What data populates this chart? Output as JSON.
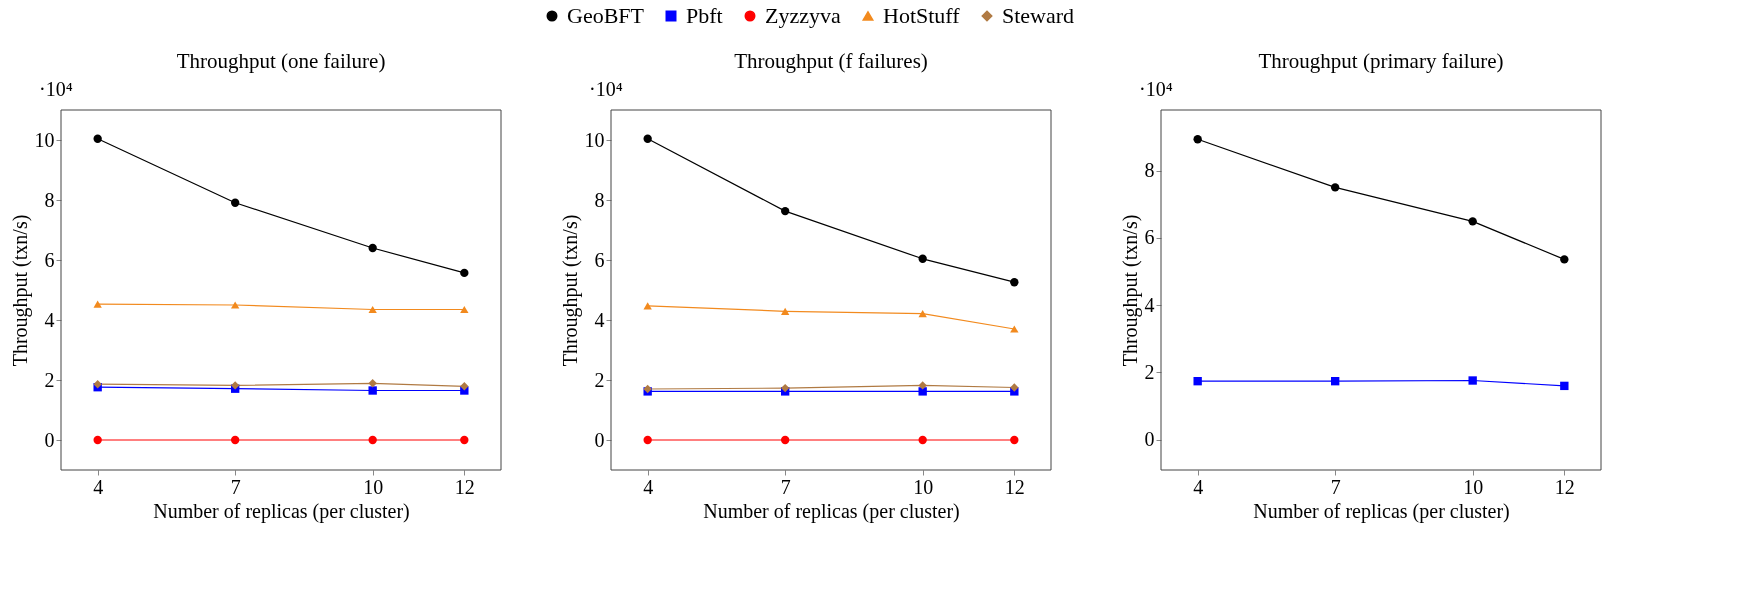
{
  "chart_data": [
    {
      "type": "line",
      "title": "Throughput (one failure)",
      "xlabel": "Number of replicas (per cluster)",
      "ylabel": "Throughput (txn/s)",
      "x": [
        4,
        7,
        10,
        12
      ],
      "xlim": [
        3.2,
        12.8
      ],
      "xticks": [
        4,
        7,
        10,
        12
      ],
      "ylim": [
        -1,
        11
      ],
      "yticks": [
        0,
        2,
        4,
        6,
        8,
        10
      ],
      "grid": false,
      "legend": "top",
      "annotations": [
        "·10⁴"
      ],
      "series": [
        {
          "name": "GeoBFT",
          "color": "#000000",
          "marker": "circle",
          "values": [
            10.04,
            7.91,
            6.4,
            5.57
          ]
        },
        {
          "name": "Pbft",
          "color": "#0000ff",
          "marker": "square",
          "values": [
            1.76,
            1.71,
            1.65,
            1.65
          ]
        },
        {
          "name": "Zyzzyva",
          "color": "#ff0000",
          "marker": "circle",
          "values": [
            0,
            0,
            0,
            0
          ]
        },
        {
          "name": "HotStuff",
          "color": "#f28a1e",
          "marker": "triangle",
          "values": [
            4.53,
            4.5,
            4.35,
            4.35
          ]
        },
        {
          "name": "Steward",
          "color": "#b07a43",
          "marker": "diamond",
          "values": [
            1.86,
            1.82,
            1.89,
            1.79
          ]
        }
      ]
    },
    {
      "type": "line",
      "title": "Throughput (f failures)",
      "xlabel": "Number of replicas (per cluster)",
      "ylabel": "Throughput (txn/s)",
      "x": [
        4,
        7,
        10,
        12
      ],
      "xlim": [
        3.2,
        12.8
      ],
      "xticks": [
        4,
        7,
        10,
        12
      ],
      "ylim": [
        -1,
        11
      ],
      "yticks": [
        0,
        2,
        4,
        6,
        8,
        10
      ],
      "grid": false,
      "annotations": [
        "·10⁴"
      ],
      "series": [
        {
          "color": "#000000",
          "marker": "circle",
          "values": [
            10.04,
            7.63,
            6.04,
            5.26
          ]
        },
        {
          "color": "#0000ff",
          "marker": "square",
          "values": [
            1.62,
            1.62,
            1.62,
            1.62
          ]
        },
        {
          "color": "#ff0000",
          "marker": "circle",
          "values": [
            0,
            0,
            0,
            0
          ]
        },
        {
          "color": "#f28a1e",
          "marker": "triangle",
          "values": [
            4.47,
            4.29,
            4.21,
            3.7
          ]
        },
        {
          "color": "#b07a43",
          "marker": "diamond",
          "values": [
            1.7,
            1.73,
            1.82,
            1.75
          ]
        }
      ]
    },
    {
      "type": "line",
      "title": "Throughput (primary failure)",
      "xlabel": "Number of replicas (per cluster)",
      "ylabel": "Throughput (txn/s)",
      "x": [
        4,
        7,
        10,
        12
      ],
      "xlim": [
        3.2,
        12.8
      ],
      "xticks": [
        4,
        7,
        10,
        12
      ],
      "ylim": [
        -0.9,
        9.8
      ],
      "yticks": [
        0,
        2,
        4,
        6,
        8
      ],
      "grid": false,
      "annotations": [
        "·10⁴"
      ],
      "series": [
        {
          "color": "#000000",
          "marker": "circle",
          "values": [
            8.93,
            7.5,
            6.49,
            5.36
          ]
        },
        {
          "color": "#0000ff",
          "marker": "square",
          "values": [
            1.74,
            1.74,
            1.76,
            1.6
          ]
        }
      ]
    }
  ]
}
